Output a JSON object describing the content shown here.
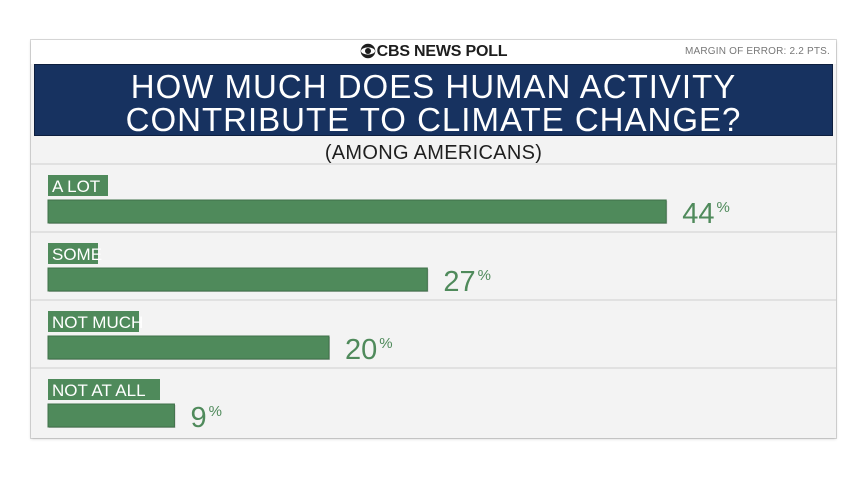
{
  "header": {
    "brand": "CBS NEWS POLL",
    "margin_of_error": "MARGIN OF ERROR: 2.2 PTS."
  },
  "title_lines": [
    "HOW MUCH DOES HUMAN ACTIVITY",
    "CONTRIBUTE TO CLIMATE CHANGE?"
  ],
  "subtitle": "(AMONG AMERICANS)",
  "colors": {
    "bar": "#4f8a5b",
    "bar_dark": "#3f7049",
    "value_text": "#4f8a5b",
    "title_band": "#173260"
  },
  "chart_data": {
    "type": "bar",
    "orientation": "horizontal",
    "categories": [
      "A LOT",
      "SOME",
      "NOT MUCH",
      "NOT AT ALL"
    ],
    "values": [
      44,
      27,
      20,
      9
    ],
    "value_labels": [
      "44",
      "27",
      "20",
      "9"
    ],
    "unit": "%",
    "xlim": [
      0,
      50
    ]
  }
}
